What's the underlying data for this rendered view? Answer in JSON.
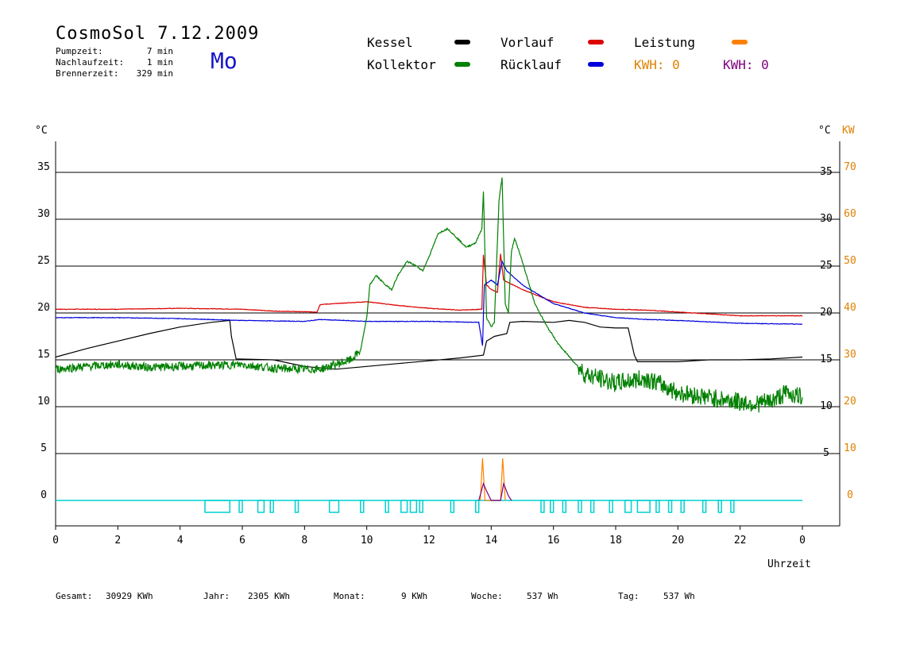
{
  "header": {
    "title": "CosmoSol 7.12.2009",
    "day": "Mo",
    "stats": [
      {
        "label": "Pumpzeit:",
        "value": "7 min"
      },
      {
        "label": "Nachlaufzeit:",
        "value": "1 min"
      },
      {
        "label": "Brennerzeit:",
        "value": "329 min"
      }
    ]
  },
  "legend": {
    "kessel": {
      "label": "Kessel",
      "color": "#000000"
    },
    "kollektor": {
      "label": "Kollektor",
      "color": "#008000"
    },
    "vorlauf": {
      "label": "Vorlauf",
      "color": "#dd0000"
    },
    "ruecklauf": {
      "label": "Rücklauf",
      "color": "#0000dd"
    },
    "leistung": {
      "label": "Leistung",
      "color": "#ff8000"
    },
    "kwh1": {
      "label": "KWH: 0",
      "color": "#e08000"
    },
    "kwh2": {
      "label": "KWH: 0",
      "color": "#800080"
    }
  },
  "footer": [
    {
      "label": "Gesamt:",
      "value": "30929 KWh"
    },
    {
      "label": "Jahr:",
      "value": "2305 KWh"
    },
    {
      "label": "Monat:",
      "value": "9 KWh"
    },
    {
      "label": "Woche:",
      "value": "537 Wh"
    },
    {
      "label": "Tag:",
      "value": "537 Wh"
    }
  ],
  "chart_data": {
    "type": "line",
    "xlabel": "Uhrzeit",
    "ylabel_left": "°C",
    "ylabel_right": "°C",
    "ylabel_right2": "KW",
    "xlim": [
      0,
      24
    ],
    "ylim": [
      -2,
      38
    ],
    "x_ticks": [
      "0",
      "2",
      "4",
      "6",
      "8",
      "10",
      "12",
      "14",
      "16",
      "18",
      "20",
      "22",
      "0"
    ],
    "y_ticks": [
      0,
      5,
      10,
      15,
      20,
      25,
      30,
      35
    ],
    "y_ticks_kw": [
      0,
      10,
      20,
      30,
      40,
      50,
      60,
      70
    ],
    "gridlines": [
      0,
      5,
      10,
      15,
      20,
      25,
      30,
      35
    ],
    "series": [
      {
        "name": "Kessel",
        "color": "#000000",
        "points": [
          [
            0,
            15.3
          ],
          [
            1,
            16.2
          ],
          [
            2,
            17.0
          ],
          [
            3,
            17.8
          ],
          [
            4,
            18.5
          ],
          [
            5,
            19.0
          ],
          [
            5.6,
            19.2
          ],
          [
            5.65,
            17.5
          ],
          [
            5.8,
            15.1
          ],
          [
            7,
            15.0
          ],
          [
            8,
            14.3
          ],
          [
            9,
            14.0
          ],
          [
            10,
            14.3
          ],
          [
            11,
            14.6
          ],
          [
            12,
            14.9
          ],
          [
            13,
            15.2
          ],
          [
            13.75,
            15.5
          ],
          [
            13.85,
            17.0
          ],
          [
            14.1,
            17.5
          ],
          [
            14.5,
            17.8
          ],
          [
            14.6,
            19.0
          ],
          [
            15,
            19.1
          ],
          [
            16,
            19.0
          ],
          [
            16.5,
            19.2
          ],
          [
            17,
            19.0
          ],
          [
            17.5,
            18.5
          ],
          [
            18,
            18.4
          ],
          [
            18.4,
            18.4
          ],
          [
            18.6,
            15.5
          ],
          [
            18.7,
            14.8
          ],
          [
            19,
            14.8
          ],
          [
            20,
            14.8
          ],
          [
            21,
            15.0
          ],
          [
            21.5,
            15.0
          ],
          [
            22,
            15.0
          ],
          [
            23,
            15.1
          ],
          [
            24,
            15.3
          ]
        ]
      },
      {
        "name": "Vorlauf",
        "color": "#dd0000",
        "points": [
          [
            0,
            20.4
          ],
          [
            2,
            20.4
          ],
          [
            4,
            20.5
          ],
          [
            6,
            20.4
          ],
          [
            7,
            20.2
          ],
          [
            8.4,
            20.1
          ],
          [
            8.5,
            20.9
          ],
          [
            10,
            21.2
          ],
          [
            11,
            20.8
          ],
          [
            12,
            20.5
          ],
          [
            13,
            20.3
          ],
          [
            13.7,
            20.4
          ],
          [
            13.75,
            26.2
          ],
          [
            13.85,
            23.0
          ],
          [
            14,
            22.5
          ],
          [
            14.2,
            22.2
          ],
          [
            14.3,
            26.3
          ],
          [
            14.4,
            23.5
          ],
          [
            15,
            22.5
          ],
          [
            16,
            21.2
          ],
          [
            17,
            20.6
          ],
          [
            18,
            20.4
          ],
          [
            19,
            20.3
          ],
          [
            20,
            20.1
          ],
          [
            21,
            19.9
          ],
          [
            22,
            19.7
          ],
          [
            24,
            19.7
          ]
        ]
      },
      {
        "name": "Rücklauf",
        "color": "#0000dd",
        "points": [
          [
            0,
            19.5
          ],
          [
            2,
            19.5
          ],
          [
            4,
            19.4
          ],
          [
            6,
            19.2
          ],
          [
            8,
            19.1
          ],
          [
            8.5,
            19.3
          ],
          [
            10,
            19.1
          ],
          [
            12,
            19.1
          ],
          [
            13.6,
            19.0
          ],
          [
            13.72,
            16.5
          ],
          [
            13.78,
            23.0
          ],
          [
            14,
            23.5
          ],
          [
            14.2,
            23.0
          ],
          [
            14.35,
            25.5
          ],
          [
            14.5,
            24.5
          ],
          [
            15,
            23.0
          ],
          [
            16,
            21.0
          ],
          [
            17,
            20.0
          ],
          [
            18,
            19.5
          ],
          [
            19,
            19.3
          ],
          [
            20,
            19.2
          ],
          [
            22,
            18.9
          ],
          [
            24,
            18.8
          ]
        ]
      },
      {
        "name": "Kollektor",
        "color": "#008000",
        "points": [
          [
            0,
            14.0
          ],
          [
            1,
            14.3
          ],
          [
            2,
            14.5
          ],
          [
            3,
            14.2
          ],
          [
            4,
            14.3
          ],
          [
            5,
            14.4
          ],
          [
            6,
            14.5
          ],
          [
            7,
            14.1
          ],
          [
            8,
            14.0
          ],
          [
            8.5,
            14.0
          ],
          [
            9,
            14.5
          ],
          [
            9.5,
            15.0
          ],
          [
            9.8,
            16.0
          ],
          [
            10,
            19.5
          ],
          [
            10.1,
            23.0
          ],
          [
            10.3,
            24.0
          ],
          [
            10.6,
            23.0
          ],
          [
            10.8,
            22.5
          ],
          [
            11,
            24.0
          ],
          [
            11.3,
            25.5
          ],
          [
            11.6,
            25.0
          ],
          [
            11.8,
            24.5
          ],
          [
            12,
            26.0
          ],
          [
            12.3,
            28.5
          ],
          [
            12.6,
            29.0
          ],
          [
            12.9,
            28.0
          ],
          [
            13.2,
            27.0
          ],
          [
            13.5,
            27.5
          ],
          [
            13.7,
            29.0
          ],
          [
            13.75,
            33.0
          ],
          [
            13.85,
            19.5
          ],
          [
            14.0,
            18.5
          ],
          [
            14.1,
            19.0
          ],
          [
            14.25,
            32.0
          ],
          [
            14.35,
            34.5
          ],
          [
            14.45,
            21.0
          ],
          [
            14.55,
            20.0
          ],
          [
            14.65,
            26.5
          ],
          [
            14.75,
            28.0
          ],
          [
            15,
            25.5
          ],
          [
            15.4,
            21.0
          ],
          [
            15.8,
            18.5
          ],
          [
            16.2,
            16.5
          ],
          [
            16.6,
            15.0
          ],
          [
            17,
            13.5
          ],
          [
            17.5,
            13.0
          ],
          [
            18,
            12.5
          ],
          [
            18.5,
            12.8
          ],
          [
            19,
            13.0
          ],
          [
            19.5,
            12.3
          ],
          [
            20,
            11.5
          ],
          [
            21,
            11.0
          ],
          [
            22,
            10.5
          ],
          [
            22.5,
            10.3
          ],
          [
            23,
            10.6
          ],
          [
            23.5,
            11.5
          ],
          [
            24,
            11.0
          ]
        ]
      },
      {
        "name": "Leistung",
        "color": "#ff8000",
        "points": [
          [
            13.65,
            0
          ],
          [
            13.72,
            4.5
          ],
          [
            13.8,
            0
          ],
          [
            14.3,
            0
          ],
          [
            14.37,
            4.5
          ],
          [
            14.45,
            0
          ]
        ]
      },
      {
        "name": "KWH",
        "color": "#800080",
        "points": [
          [
            13.6,
            0
          ],
          [
            13.75,
            1.8
          ],
          [
            13.85,
            1.0
          ],
          [
            14.0,
            0
          ],
          [
            14.3,
            0
          ],
          [
            14.4,
            1.8
          ],
          [
            14.55,
            0.5
          ],
          [
            14.65,
            0
          ]
        ]
      }
    ],
    "pump_color": "#00d0d0",
    "pump_pulses": [
      [
        4.8,
        5.6
      ],
      [
        5.9,
        6.0
      ],
      [
        6.5,
        6.7
      ],
      [
        6.9,
        7.0
      ],
      [
        7.7,
        7.8
      ],
      [
        8.8,
        9.1
      ],
      [
        9.8,
        9.9
      ],
      [
        10.6,
        10.7
      ],
      [
        11.1,
        11.3
      ],
      [
        11.4,
        11.6
      ],
      [
        11.7,
        11.8
      ],
      [
        12.7,
        12.8
      ],
      [
        13.5,
        13.6
      ],
      [
        15.6,
        15.7
      ],
      [
        15.9,
        16.0
      ],
      [
        16.3,
        16.4
      ],
      [
        16.8,
        16.9
      ],
      [
        17.2,
        17.3
      ],
      [
        17.8,
        17.9
      ],
      [
        18.3,
        18.5
      ],
      [
        18.7,
        19.1
      ],
      [
        19.3,
        19.4
      ],
      [
        19.7,
        19.8
      ],
      [
        20.1,
        20.2
      ],
      [
        20.8,
        20.9
      ],
      [
        21.3,
        21.4
      ],
      [
        21.7,
        21.8
      ]
    ]
  }
}
